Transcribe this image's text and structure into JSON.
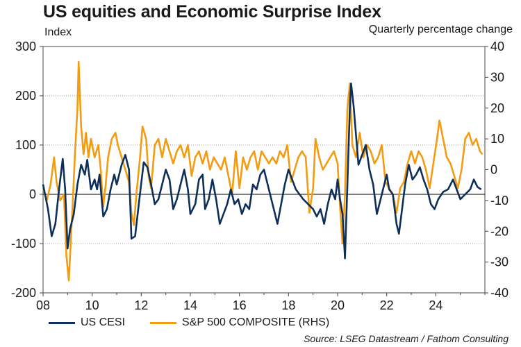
{
  "chart_data": {
    "type": "line",
    "title": "US equities and Economic Surprise Index",
    "ylabel_left": "Index",
    "ylabel_right": "Quarterly percentage change",
    "source": "Source: LSEG Datastream / Fathom Consulting",
    "x_range": [
      2008,
      2026
    ],
    "x_ticks": [
      2008,
      2010,
      2012,
      2014,
      2016,
      2018,
      2020,
      2022,
      2024
    ],
    "x_tick_labels": [
      "08",
      "10",
      "12",
      "14",
      "16",
      "18",
      "20",
      "22",
      "24"
    ],
    "ylim_left": [
      -200,
      300
    ],
    "ylim_right": [
      -40,
      40
    ],
    "y_ticks_left": [
      -200,
      -100,
      0,
      100,
      200,
      300
    ],
    "y_ticks_right": [
      -40,
      -30,
      -20,
      -10,
      0,
      10,
      20,
      30,
      40
    ],
    "colors": {
      "cesi": "#0d2f5a",
      "sp500": "#f39c12",
      "zero_line": "#000000",
      "grid": "#999999"
    },
    "series": [
      {
        "name": "US CESI",
        "axis": "left",
        "points": [
          [
            2008.0,
            20
          ],
          [
            2008.2,
            -30
          ],
          [
            2008.35,
            -85
          ],
          [
            2008.5,
            -60
          ],
          [
            2008.65,
            10
          ],
          [
            2008.8,
            72
          ],
          [
            2008.9,
            10
          ],
          [
            2009.0,
            -110
          ],
          [
            2009.1,
            -70
          ],
          [
            2009.25,
            -40
          ],
          [
            2009.4,
            20
          ],
          [
            2009.55,
            60
          ],
          [
            2009.7,
            40
          ],
          [
            2009.8,
            70
          ],
          [
            2009.95,
            10
          ],
          [
            2010.1,
            30
          ],
          [
            2010.2,
            10
          ],
          [
            2010.3,
            40
          ],
          [
            2010.45,
            -45
          ],
          [
            2010.6,
            -30
          ],
          [
            2010.75,
            10
          ],
          [
            2010.9,
            40
          ],
          [
            2011.0,
            20
          ],
          [
            2011.2,
            60
          ],
          [
            2011.35,
            80
          ],
          [
            2011.5,
            50
          ],
          [
            2011.6,
            -90
          ],
          [
            2011.75,
            -85
          ],
          [
            2011.9,
            -20
          ],
          [
            2012.1,
            65
          ],
          [
            2012.25,
            55
          ],
          [
            2012.4,
            20
          ],
          [
            2012.55,
            -20
          ],
          [
            2012.7,
            -10
          ],
          [
            2012.85,
            20
          ],
          [
            2013.0,
            50
          ],
          [
            2013.15,
            30
          ],
          [
            2013.3,
            -30
          ],
          [
            2013.45,
            -10
          ],
          [
            2013.6,
            20
          ],
          [
            2013.75,
            50
          ],
          [
            2013.9,
            10
          ],
          [
            2014.0,
            -40
          ],
          [
            2014.2,
            -20
          ],
          [
            2014.35,
            30
          ],
          [
            2014.5,
            40
          ],
          [
            2014.6,
            -30
          ],
          [
            2014.75,
            -10
          ],
          [
            2014.9,
            30
          ],
          [
            2015.05,
            -10
          ],
          [
            2015.2,
            -60
          ],
          [
            2015.35,
            -40
          ],
          [
            2015.5,
            -20
          ],
          [
            2015.65,
            10
          ],
          [
            2015.8,
            -20
          ],
          [
            2015.95,
            -10
          ],
          [
            2016.1,
            -40
          ],
          [
            2016.25,
            -20
          ],
          [
            2016.4,
            -30
          ],
          [
            2016.55,
            20
          ],
          [
            2016.7,
            10
          ],
          [
            2016.85,
            40
          ],
          [
            2017.0,
            50
          ],
          [
            2017.15,
            20
          ],
          [
            2017.3,
            -10
          ],
          [
            2017.45,
            -40
          ],
          [
            2017.55,
            -60
          ],
          [
            2017.7,
            -20
          ],
          [
            2017.85,
            20
          ],
          [
            2018.0,
            50
          ],
          [
            2018.15,
            30
          ],
          [
            2018.3,
            10
          ],
          [
            2018.45,
            0
          ],
          [
            2018.6,
            -10
          ],
          [
            2018.8,
            -20
          ],
          [
            2019.0,
            -30
          ],
          [
            2019.15,
            -45
          ],
          [
            2019.3,
            -30
          ],
          [
            2019.45,
            -60
          ],
          [
            2019.6,
            -20
          ],
          [
            2019.75,
            10
          ],
          [
            2019.9,
            -10
          ],
          [
            2020.0,
            30
          ],
          [
            2020.1,
            -10
          ],
          [
            2020.2,
            -40
          ],
          [
            2020.3,
            -130
          ],
          [
            2020.4,
            20
          ],
          [
            2020.5,
            180
          ],
          [
            2020.55,
            225
          ],
          [
            2020.65,
            180
          ],
          [
            2020.75,
            120
          ],
          [
            2020.85,
            60
          ],
          [
            2021.0,
            80
          ],
          [
            2021.15,
            100
          ],
          [
            2021.3,
            50
          ],
          [
            2021.45,
            20
          ],
          [
            2021.6,
            -40
          ],
          [
            2021.7,
            -20
          ],
          [
            2021.85,
            10
          ],
          [
            2022.0,
            40
          ],
          [
            2022.1,
            10
          ],
          [
            2022.25,
            0
          ],
          [
            2022.4,
            -60
          ],
          [
            2022.5,
            -80
          ],
          [
            2022.6,
            -40
          ],
          [
            2022.75,
            20
          ],
          [
            2022.9,
            60
          ],
          [
            2023.05,
            30
          ],
          [
            2023.2,
            40
          ],
          [
            2023.35,
            55
          ],
          [
            2023.5,
            30
          ],
          [
            2023.65,
            10
          ],
          [
            2023.8,
            -20
          ],
          [
            2023.95,
            -30
          ],
          [
            2024.1,
            -10
          ],
          [
            2024.3,
            5
          ],
          [
            2024.5,
            10
          ],
          [
            2024.7,
            30
          ],
          [
            2024.85,
            10
          ],
          [
            2025.0,
            -10
          ],
          [
            2025.2,
            0
          ],
          [
            2025.4,
            10
          ],
          [
            2025.55,
            30
          ],
          [
            2025.7,
            15
          ],
          [
            2025.85,
            10
          ]
        ]
      },
      {
        "name": "S&P 500 COMPOSITE (RHS)",
        "axis": "right",
        "points": [
          [
            2008.0,
            -6
          ],
          [
            2008.15,
            -10
          ],
          [
            2008.3,
            -5
          ],
          [
            2008.45,
            4
          ],
          [
            2008.55,
            -4
          ],
          [
            2008.7,
            -10
          ],
          [
            2008.85,
            -8
          ],
          [
            2008.95,
            -28
          ],
          [
            2009.05,
            -36
          ],
          [
            2009.2,
            -12
          ],
          [
            2009.3,
            5
          ],
          [
            2009.4,
            20
          ],
          [
            2009.45,
            35
          ],
          [
            2009.55,
            14
          ],
          [
            2009.65,
            5
          ],
          [
            2009.75,
            12
          ],
          [
            2009.85,
            4
          ],
          [
            2009.95,
            10
          ],
          [
            2010.1,
            4
          ],
          [
            2010.25,
            8
          ],
          [
            2010.35,
            0
          ],
          [
            2010.45,
            -12
          ],
          [
            2010.55,
            -5
          ],
          [
            2010.65,
            4
          ],
          [
            2010.8,
            10
          ],
          [
            2010.95,
            12
          ],
          [
            2011.05,
            8
          ],
          [
            2011.2,
            4
          ],
          [
            2011.35,
            0
          ],
          [
            2011.5,
            -4
          ],
          [
            2011.6,
            -14
          ],
          [
            2011.7,
            -18
          ],
          [
            2011.8,
            -8
          ],
          [
            2011.95,
            4
          ],
          [
            2012.05,
            14
          ],
          [
            2012.2,
            10
          ],
          [
            2012.3,
            -2
          ],
          [
            2012.4,
            -6
          ],
          [
            2012.55,
            8
          ],
          [
            2012.7,
            10
          ],
          [
            2012.85,
            4
          ],
          [
            2013.0,
            10
          ],
          [
            2013.15,
            6
          ],
          [
            2013.3,
            2
          ],
          [
            2013.45,
            6
          ],
          [
            2013.6,
            8
          ],
          [
            2013.75,
            4
          ],
          [
            2013.9,
            8
          ],
          [
            2014.05,
            -2
          ],
          [
            2014.2,
            4
          ],
          [
            2014.35,
            6
          ],
          [
            2014.5,
            2
          ],
          [
            2014.65,
            6
          ],
          [
            2014.8,
            0
          ],
          [
            2014.95,
            4
          ],
          [
            2015.1,
            2
          ],
          [
            2015.25,
            0
          ],
          [
            2015.4,
            4
          ],
          [
            2015.55,
            -2
          ],
          [
            2015.7,
            -8
          ],
          [
            2015.85,
            6
          ],
          [
            2016.0,
            -6
          ],
          [
            2016.15,
            4
          ],
          [
            2016.3,
            0
          ],
          [
            2016.45,
            4
          ],
          [
            2016.6,
            6
          ],
          [
            2016.75,
            0
          ],
          [
            2016.9,
            6
          ],
          [
            2017.05,
            4
          ],
          [
            2017.2,
            2
          ],
          [
            2017.35,
            4
          ],
          [
            2017.5,
            2
          ],
          [
            2017.65,
            6
          ],
          [
            2017.8,
            4
          ],
          [
            2017.95,
            8
          ],
          [
            2018.1,
            -4
          ],
          [
            2018.25,
            0
          ],
          [
            2018.4,
            4
          ],
          [
            2018.55,
            6
          ],
          [
            2018.7,
            4
          ],
          [
            2018.85,
            -14
          ],
          [
            2019.0,
            -6
          ],
          [
            2019.1,
            10
          ],
          [
            2019.25,
            4
          ],
          [
            2019.4,
            0
          ],
          [
            2019.55,
            2
          ],
          [
            2019.7,
            4
          ],
          [
            2019.85,
            6
          ],
          [
            2020.0,
            2
          ],
          [
            2020.1,
            -12
          ],
          [
            2020.2,
            -24
          ],
          [
            2020.3,
            -8
          ],
          [
            2020.4,
            20
          ],
          [
            2020.5,
            28
          ],
          [
            2020.6,
            8
          ],
          [
            2020.75,
            4
          ],
          [
            2020.9,
            12
          ],
          [
            2021.05,
            4
          ],
          [
            2021.2,
            8
          ],
          [
            2021.35,
            6
          ],
          [
            2021.5,
            2
          ],
          [
            2021.65,
            4
          ],
          [
            2021.8,
            8
          ],
          [
            2021.95,
            -4
          ],
          [
            2022.1,
            -6
          ],
          [
            2022.25,
            -8
          ],
          [
            2022.4,
            -14
          ],
          [
            2022.55,
            -6
          ],
          [
            2022.7,
            -4
          ],
          [
            2022.85,
            2
          ],
          [
            2023.0,
            6
          ],
          [
            2023.15,
            2
          ],
          [
            2023.3,
            6
          ],
          [
            2023.45,
            4
          ],
          [
            2023.6,
            0
          ],
          [
            2023.75,
            -6
          ],
          [
            2023.9,
            2
          ],
          [
            2024.05,
            10
          ],
          [
            2024.15,
            16
          ],
          [
            2024.3,
            10
          ],
          [
            2024.45,
            4
          ],
          [
            2024.6,
            2
          ],
          [
            2024.75,
            -2
          ],
          [
            2024.9,
            -6
          ],
          [
            2025.05,
            0
          ],
          [
            2025.2,
            10
          ],
          [
            2025.35,
            12
          ],
          [
            2025.5,
            8
          ],
          [
            2025.65,
            10
          ],
          [
            2025.8,
            6
          ],
          [
            2025.9,
            5
          ]
        ]
      }
    ]
  }
}
